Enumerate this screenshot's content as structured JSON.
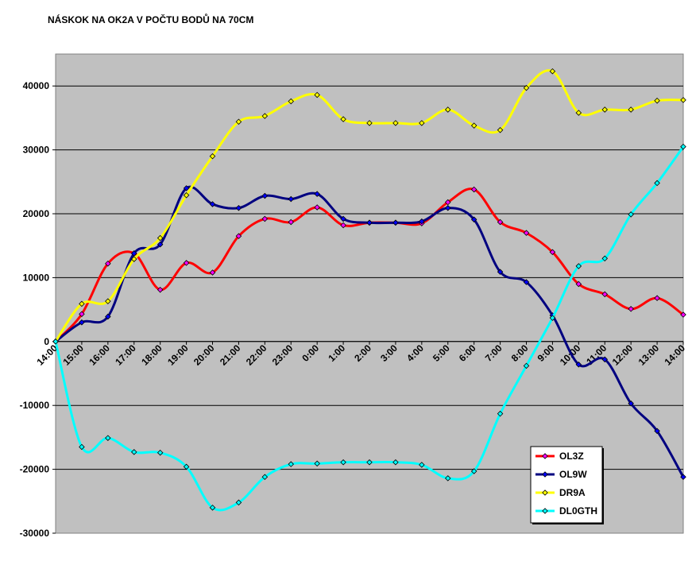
{
  "chart_data": {
    "type": "line",
    "title": "NÁSKOK NA OK2A V POČTU BODŮ NA 70CM",
    "xlabel": "",
    "ylabel": "",
    "ylim": [
      -30000,
      45000
    ],
    "y_ticks": [
      -30000,
      -20000,
      -10000,
      0,
      10000,
      20000,
      30000,
      40000
    ],
    "y_tick_labels": [
      "-30000",
      "-20000",
      "-10000",
      "0",
      "10000",
      "20000",
      "30000",
      "40000"
    ],
    "grid": true,
    "legend_position": "lower-right",
    "categories": [
      "14:00",
      "15:00",
      "16:00",
      "17:00",
      "18:00",
      "19:00",
      "20:00",
      "21:00",
      "22:00",
      "23:00",
      "0:00",
      "1:00",
      "2:00",
      "3:00",
      "4:00",
      "5:00",
      "6:00",
      "7:00",
      "8:00",
      "9:00",
      "10:00",
      "11:00",
      "12:00",
      "13:00",
      "14:00"
    ],
    "series": [
      {
        "name": "OL3Z",
        "color": "#ff0000",
        "marker_color": "#ff00ff",
        "values": [
          0,
          4300,
          12200,
          13800,
          8100,
          12300,
          10800,
          16500,
          19200,
          18700,
          21000,
          18200,
          18600,
          18600,
          18500,
          21800,
          23800,
          18700,
          17000,
          14000,
          9000,
          7400,
          5100,
          6800,
          4200
        ]
      },
      {
        "name": "OL9W",
        "color": "#000080",
        "marker_color": "#0000ff",
        "values": [
          0,
          3000,
          3900,
          13800,
          15200,
          24000,
          21500,
          20900,
          22800,
          22300,
          23100,
          19200,
          18600,
          18600,
          18800,
          20900,
          19100,
          10900,
          9300,
          4100,
          -3600,
          -2800,
          -9700,
          -14000,
          -21200
        ]
      },
      {
        "name": "DR9A",
        "color": "#ffff00",
        "marker_color": "#ffff00",
        "values": [
          0,
          5900,
          6300,
          12900,
          16200,
          22900,
          29000,
          34400,
          35300,
          37600,
          38600,
          34800,
          34200,
          34200,
          34200,
          36300,
          33800,
          33100,
          39700,
          42300,
          35800,
          36300,
          36300,
          37700,
          37800
        ]
      },
      {
        "name": "DL0GTH",
        "color": "#00ffff",
        "marker_color": "#00ffff",
        "values": [
          0,
          -16500,
          -15100,
          -17300,
          -17400,
          -19600,
          -26000,
          -25200,
          -21200,
          -19200,
          -19100,
          -18900,
          -18900,
          -18900,
          -19300,
          -21400,
          -20300,
          -11300,
          -3800,
          3700,
          11800,
          13000,
          19900,
          24800,
          30500
        ]
      }
    ]
  }
}
